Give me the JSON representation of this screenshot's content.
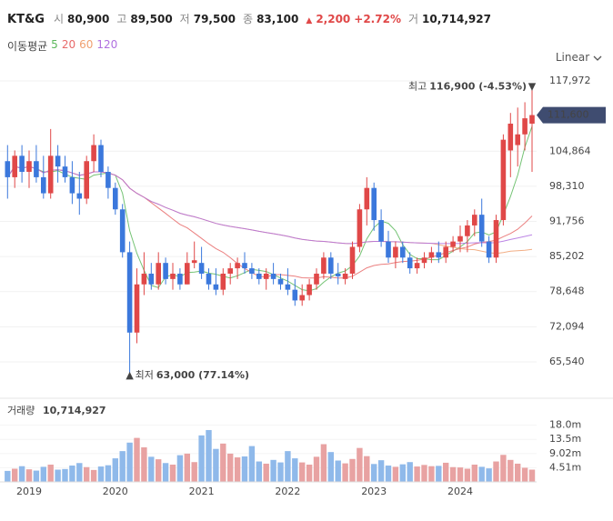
{
  "header": {
    "name": "KT&G",
    "fields": [
      {
        "label": "시",
        "value": "80,900"
      },
      {
        "label": "고",
        "value": "89,500"
      },
      {
        "label": "저",
        "value": "79,500"
      },
      {
        "label": "종",
        "value": "83,100"
      }
    ],
    "change": "2,200",
    "change_pct": "+2.72%",
    "volume_label": "거",
    "volume": "10,714,927"
  },
  "scale_mode": "Linear",
  "chart_data": [
    {
      "type": "candlestick",
      "categories": [
        null,
        null,
        null,
        "2019",
        null,
        null,
        null,
        null,
        null,
        null,
        null,
        null,
        null,
        null,
        null,
        "2020",
        null,
        null,
        null,
        null,
        null,
        null,
        null,
        null,
        null,
        null,
        null,
        "2021",
        null,
        null,
        null,
        null,
        null,
        null,
        null,
        null,
        null,
        null,
        null,
        "2022",
        null,
        null,
        null,
        null,
        null,
        null,
        null,
        null,
        null,
        null,
        null,
        "2023",
        null,
        null,
        null,
        null,
        null,
        null,
        null,
        null,
        null,
        null,
        null,
        "2024",
        null,
        null,
        null,
        null,
        null,
        null,
        null,
        null,
        null,
        null
      ],
      "open": [
        103000,
        100000,
        104000,
        101000,
        103000,
        100000,
        97000,
        104000,
        102000,
        100000,
        97000,
        96000,
        103000,
        106000,
        101000,
        98000,
        94000,
        86000,
        71000,
        80000,
        82000,
        80000,
        84000,
        81000,
        82000,
        80000,
        84000,
        84000,
        82000,
        80000,
        79000,
        82000,
        83000,
        84000,
        83000,
        82000,
        81000,
        82000,
        81000,
        80000,
        79000,
        77000,
        78000,
        80000,
        82000,
        85000,
        82000,
        81000,
        82000,
        87000,
        94000,
        98000,
        92000,
        88000,
        85000,
        87000,
        85000,
        83000,
        84000,
        85000,
        86000,
        85000,
        87000,
        88000,
        89000,
        91000,
        93000,
        88000,
        85000,
        92000,
        105000,
        106000,
        108000,
        110000
      ],
      "high": [
        106000,
        105000,
        106000,
        105000,
        106000,
        104000,
        109000,
        106000,
        104000,
        103000,
        101000,
        104000,
        108000,
        107000,
        102000,
        99000,
        95000,
        88000,
        83000,
        86000,
        84000,
        86000,
        85000,
        84000,
        83000,
        86000,
        88000,
        87000,
        83000,
        83000,
        83000,
        84000,
        85000,
        86000,
        84000,
        83000,
        83000,
        84000,
        82000,
        83000,
        81000,
        80000,
        81000,
        83000,
        86000,
        86000,
        84000,
        83000,
        88000,
        95000,
        100000,
        99000,
        94000,
        90000,
        88000,
        88000,
        86000,
        85000,
        86000,
        87000,
        88000,
        88000,
        89000,
        91000,
        92000,
        94000,
        96000,
        89000,
        93000,
        108000,
        112000,
        113000,
        114000,
        116900
      ],
      "low": [
        96000,
        98000,
        99000,
        98000,
        99000,
        96000,
        96000,
        99000,
        99000,
        95000,
        93000,
        95000,
        101000,
        100000,
        96000,
        93000,
        85000,
        63000,
        69000,
        78000,
        79000,
        79000,
        80000,
        79000,
        79000,
        80000,
        83000,
        81000,
        79000,
        78000,
        78000,
        80000,
        81000,
        82000,
        81000,
        80000,
        79000,
        80000,
        79000,
        78000,
        76000,
        76000,
        77000,
        79000,
        81000,
        81000,
        80000,
        80000,
        81000,
        86000,
        91000,
        90000,
        87000,
        84000,
        83000,
        84000,
        82000,
        82000,
        83000,
        84000,
        84000,
        84000,
        86000,
        86000,
        86000,
        89000,
        87000,
        84000,
        84000,
        91000,
        100000,
        102000,
        105000,
        101000
      ],
      "close": [
        100000,
        104000,
        101000,
        103000,
        100000,
        97000,
        104000,
        102000,
        100000,
        97000,
        96000,
        103000,
        106000,
        101000,
        98000,
        94000,
        86000,
        71000,
        80000,
        82000,
        80000,
        84000,
        81000,
        82000,
        80000,
        84000,
        84500,
        82000,
        80000,
        79000,
        82000,
        83000,
        84000,
        83000,
        82000,
        81000,
        82000,
        81000,
        80000,
        79000,
        77000,
        78000,
        80000,
        82000,
        85000,
        82000,
        81500,
        82000,
        87000,
        94000,
        98000,
        92000,
        88000,
        85000,
        87000,
        85000,
        83000,
        84000,
        85000,
        86000,
        85000,
        87000,
        88000,
        89000,
        91000,
        93000,
        88000,
        85000,
        92000,
        107000,
        110000,
        108000,
        111000,
        111600
      ],
      "up_color": "#e04848",
      "down_color": "#3b78dc",
      "ylim": [
        60100,
        121200
      ],
      "yticks": [
        {
          "value": 65540,
          "label": "65,540"
        },
        {
          "value": 72094,
          "label": "72,094"
        },
        {
          "value": 78648,
          "label": "78,648"
        },
        {
          "value": 85202,
          "label": "85,202"
        },
        {
          "value": 91756,
          "label": "91,756"
        },
        {
          "value": 98310,
          "label": "98,310"
        },
        {
          "value": 104864,
          "label": "104,864"
        },
        {
          "value": 117972,
          "label": "117,972"
        }
      ],
      "grid": true,
      "legend_title": "이동평균",
      "moving_averages": [
        {
          "name": "5",
          "color": "#5cb85c"
        },
        {
          "name": "20",
          "color": "#e86a6a"
        },
        {
          "name": "60",
          "color": "#f0a070"
        },
        {
          "name": "120",
          "color": "#b070e0"
        }
      ],
      "annotations": [
        {
          "label": "최고",
          "text": "116,900 (-4.53%)",
          "value": 116900,
          "kind": "high"
        },
        {
          "label": "최저",
          "text": "63,000 (77.14%)",
          "value": 63000,
          "kind": "low"
        }
      ],
      "current": {
        "value": 111600,
        "label": "111,600"
      }
    },
    {
      "type": "bar",
      "title": "거래량",
      "subtitle": "10,714,927",
      "values": [
        3500000,
        4200000,
        5000000,
        4000000,
        3600000,
        4800000,
        5500000,
        3900000,
        4100000,
        5200000,
        6000000,
        4700000,
        3800000,
        4900000,
        5300000,
        7500000,
        9800000,
        12500000,
        14000000,
        11000000,
        8000000,
        7200000,
        6000000,
        5500000,
        8500000,
        9000000,
        6300000,
        14800000,
        16500000,
        10500000,
        12200000,
        9000000,
        7800000,
        8100000,
        11400000,
        6500000,
        5800000,
        7000000,
        6200000,
        9800000,
        7500000,
        6200000,
        5500000,
        8000000,
        12000000,
        9500000,
        6800000,
        5900000,
        7300000,
        10800000,
        8200000,
        5700000,
        6900000,
        5200000,
        4800000,
        5600000,
        6300000,
        4900000,
        5400000,
        5000000,
        5100000,
        6100000,
        4700000,
        4600000,
        4200000,
        5500000,
        4800000,
        4300000,
        6500000,
        8600000,
        7000000,
        5800000,
        4500000,
        3900000
      ],
      "up_color": "#e8a2a2",
      "down_color": "#8fb9ea",
      "ylim": [
        0,
        21700000
      ],
      "yticks": [
        {
          "value": 4510000,
          "label": "4.51m"
        },
        {
          "value": 9020000,
          "label": "9.02m"
        },
        {
          "value": 13530000,
          "label": "13.5m"
        },
        {
          "value": 18040000,
          "label": "18.0m"
        }
      ]
    }
  ]
}
